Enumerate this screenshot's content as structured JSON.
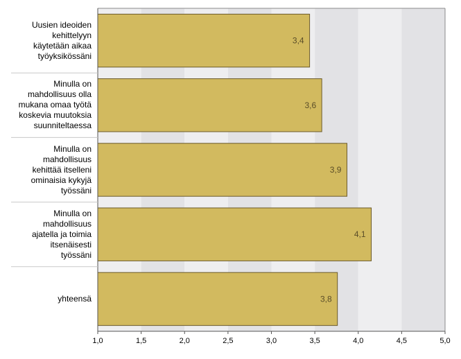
{
  "chart_data": {
    "type": "bar",
    "orientation": "horizontal",
    "categories": [
      "Uusien ideoiden kehittelyyn käytetään aikaa työyksikössäni",
      "Minulla on mahdollisuus olla mukana omaa työtä koskevia muutoksia suunniteltaessa",
      "Minulla on mahdollisuus kehittää itselleni ominaisia kykyjä työssäni",
      "Minulla on mahdollisuus ajatella ja toimia itsenäisesti työssäni",
      "yhteensä"
    ],
    "category_lines": [
      [
        "Uusien ideoiden",
        "kehittelyyn",
        "käytetään aikaa",
        "työyksikössäni"
      ],
      [
        "Minulla on",
        "mahdollisuus olla",
        "mukana omaa työtä",
        "koskevia muutoksia",
        "suunniteltaessa"
      ],
      [
        "Minulla on",
        "mahdollisuus",
        "kehittää itselleni",
        "ominaisia kykyjä",
        "työssäni"
      ],
      [
        "Minulla on",
        "mahdollisuus",
        "ajatella ja toimia",
        "itsenäisesti",
        "työssäni"
      ],
      [
        "yhteensä"
      ]
    ],
    "values": [
      3.44,
      3.58,
      3.87,
      4.15,
      3.76
    ],
    "data_labels": [
      "3,4",
      "3,6",
      "3,9",
      "4,1",
      "3,8"
    ],
    "xlim": [
      1.0,
      5.0
    ],
    "xticks": [
      "1,0",
      "1,5",
      "2,0",
      "2,5",
      "3,0",
      "3,5",
      "4,0",
      "4,5",
      "5,0"
    ],
    "title": "",
    "xlabel": "",
    "ylabel": "",
    "grid": "alternating vertical bands",
    "colors": {
      "bar_fill": "#d2ba5f",
      "bar_stroke": "#6b5a2a",
      "band_light": "#eeeef0",
      "band_dark": "#e2e2e5",
      "data_label": "#5a4d28"
    }
  }
}
